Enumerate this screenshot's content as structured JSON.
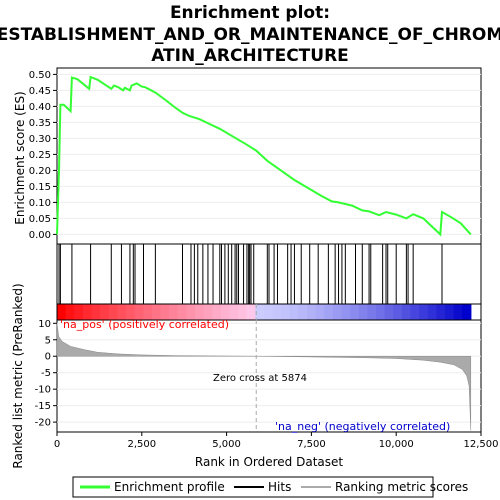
{
  "chart_data": {
    "type": "line",
    "title_lines": [
      "Enrichment plot:",
      "ESTABLISHMENT_AND_OR_MAINTENANCE_OF_CHROM",
      "ATIN_ARCHITECTURE"
    ],
    "panel_es": {
      "ylabel": "Enrichment score (ES)",
      "ylim": [
        -0.03,
        0.52
      ],
      "yticks": [
        "0.00",
        "0.05",
        "0.10",
        "0.15",
        "0.20",
        "0.25",
        "0.30",
        "0.35",
        "0.40",
        "0.45",
        "0.50"
      ],
      "series_name": "Enrichment profile",
      "color": "#33ff33",
      "points": [
        [
          0,
          0.0
        ],
        [
          60,
          0.2
        ],
        [
          100,
          0.405
        ],
        [
          200,
          0.405
        ],
        [
          400,
          0.385
        ],
        [
          440,
          0.49
        ],
        [
          600,
          0.485
        ],
        [
          950,
          0.455
        ],
        [
          990,
          0.492
        ],
        [
          1200,
          0.483
        ],
        [
          1600,
          0.455
        ],
        [
          1680,
          0.465
        ],
        [
          1800,
          0.46
        ],
        [
          1950,
          0.45
        ],
        [
          2000,
          0.458
        ],
        [
          2150,
          0.45
        ],
        [
          2200,
          0.465
        ],
        [
          2350,
          0.472
        ],
        [
          2500,
          0.462
        ],
        [
          2600,
          0.46
        ],
        [
          2900,
          0.443
        ],
        [
          3200,
          0.42
        ],
        [
          3500,
          0.395
        ],
        [
          3700,
          0.38
        ],
        [
          3900,
          0.37
        ],
        [
          4200,
          0.36
        ],
        [
          4500,
          0.345
        ],
        [
          4800,
          0.33
        ],
        [
          5200,
          0.305
        ],
        [
          5600,
          0.28
        ],
        [
          5874,
          0.262
        ],
        [
          6200,
          0.23
        ],
        [
          6600,
          0.2
        ],
        [
          7000,
          0.17
        ],
        [
          7400,
          0.145
        ],
        [
          7800,
          0.12
        ],
        [
          8100,
          0.103
        ],
        [
          8300,
          0.1
        ],
        [
          8700,
          0.09
        ],
        [
          9000,
          0.075
        ],
        [
          9200,
          0.072
        ],
        [
          9500,
          0.06
        ],
        [
          9700,
          0.07
        ],
        [
          10000,
          0.062
        ],
        [
          10300,
          0.05
        ],
        [
          10500,
          0.063
        ],
        [
          10800,
          0.05
        ],
        [
          11300,
          0.0
        ],
        [
          11350,
          0.07
        ],
        [
          11600,
          0.055
        ],
        [
          11900,
          0.035
        ],
        [
          12200,
          0.0
        ]
      ]
    },
    "hits": [
      60,
      100,
      440,
      990,
      1600,
      1900,
      2150,
      2250,
      2300,
      2550,
      2900,
      3700,
      3950,
      4050,
      4150,
      4300,
      4450,
      4600,
      4800,
      4850,
      4950,
      5050,
      5150,
      5250,
      5300,
      5350,
      5500,
      5600,
      5650,
      5680,
      5720,
      5800,
      6200,
      6250,
      6400,
      6500,
      6800,
      6900,
      7000,
      7200,
      7450,
      7700,
      8000,
      8200,
      8300,
      8400,
      8500,
      8800,
      9000,
      9200,
      9250,
      9600,
      9700,
      9750,
      10000,
      10300,
      10350,
      10500,
      11350
    ],
    "panel_metric": {
      "ylabel": "Ranked list metric (PreRanked)",
      "ylim": [
        -23,
        11
      ],
      "yticks": [
        "10",
        "5",
        "0",
        "-5",
        "-10",
        "-15",
        "-20"
      ],
      "curve": [
        [
          0,
          10
        ],
        [
          50,
          6
        ],
        [
          150,
          4.5
        ],
        [
          400,
          3.0
        ],
        [
          800,
          2.0
        ],
        [
          1200,
          1.2
        ],
        [
          1800,
          0.7
        ],
        [
          2500,
          0.4
        ],
        [
          3500,
          0.2
        ],
        [
          4500,
          0.1
        ],
        [
          5874,
          0.0
        ],
        [
          7000,
          -0.15
        ],
        [
          8000,
          -0.3
        ],
        [
          9000,
          -0.45
        ],
        [
          10000,
          -0.7
        ],
        [
          10800,
          -1.2
        ],
        [
          11300,
          -1.8
        ],
        [
          11700,
          -2.6
        ],
        [
          11950,
          -4.0
        ],
        [
          12080,
          -6.0
        ],
        [
          12150,
          -9.0
        ],
        [
          12200,
          -22.5
        ]
      ],
      "pos_label": "'na_pos' (positively correlated)",
      "neg_label": "'na_neg' (negatively correlated)",
      "zero_cross_label": "Zero cross at 5874",
      "zero_cross": 5874
    },
    "xlabel": "Rank in Ordered Dataset",
    "xlim": [
      0,
      12500
    ],
    "xticks": [
      "0",
      "2,500",
      "5,000",
      "7,500",
      "10,000",
      "12,500"
    ],
    "legend": [
      "Enrichment profile",
      "Hits",
      "Ranking metric scores"
    ],
    "colors": {
      "es_line": "#33ff33",
      "hit_line": "#000000",
      "pos_dark": "#ff0000",
      "pos_light": "#ffccee",
      "neg_light": "#ccccff",
      "neg_dark": "#0000cc",
      "metric_fill": "#aaaaaa",
      "zero_line": "#aaaaaa"
    }
  }
}
